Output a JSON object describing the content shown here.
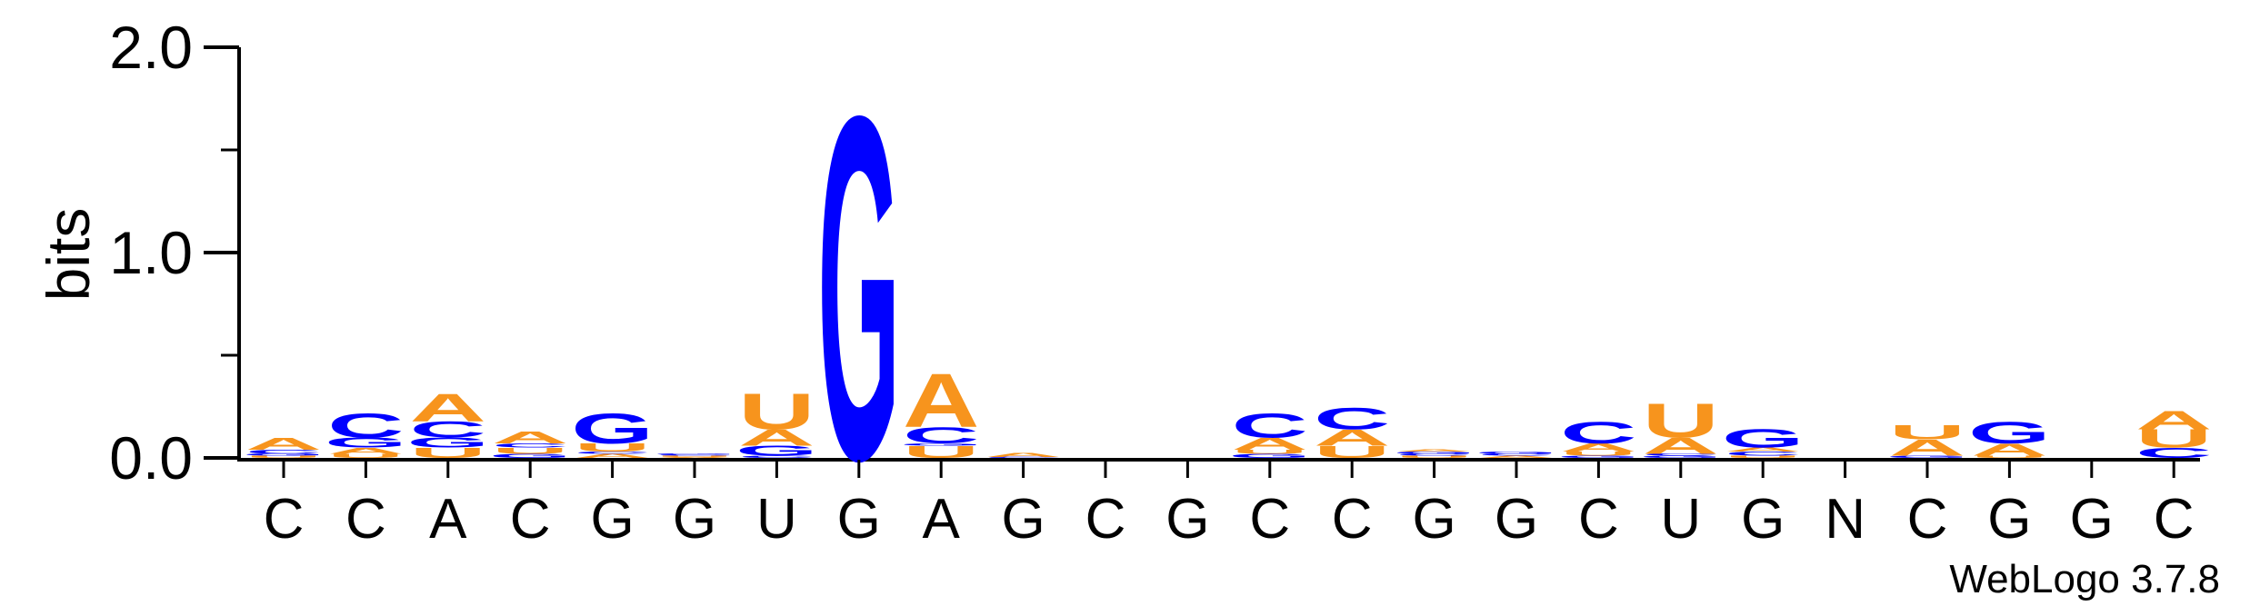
{
  "chart_data": {
    "type": "sequence-logo",
    "ylabel": "bits",
    "ylim": [
      0,
      2
    ],
    "yticks": [
      "0.0",
      "1.0",
      "2.0"
    ],
    "footer": "WebLogo 3.7.8",
    "colors": {
      "A": "#f7941d",
      "U": "#f7941d",
      "C": "#0000ff",
      "G": "#0000ff"
    },
    "positions": [
      {
        "label": "C",
        "stack": [
          [
            "U",
            0.01
          ],
          [
            "G",
            0.01
          ],
          [
            "C",
            0.02
          ],
          [
            "A",
            0.06
          ]
        ]
      },
      {
        "label": "C",
        "stack": [
          [
            "U",
            0.02
          ],
          [
            "A",
            0.03
          ],
          [
            "G",
            0.05
          ],
          [
            "C",
            0.12
          ]
        ]
      },
      {
        "label": "A",
        "stack": [
          [
            "U",
            0.05
          ],
          [
            "G",
            0.05
          ],
          [
            "C",
            0.08
          ],
          [
            "A",
            0.14
          ]
        ]
      },
      {
        "label": "C",
        "stack": [
          [
            "G",
            0.02
          ],
          [
            "U",
            0.03
          ],
          [
            "C",
            0.02
          ],
          [
            "A",
            0.06
          ]
        ]
      },
      {
        "label": "G",
        "stack": [
          [
            "A",
            0.02
          ],
          [
            "C",
            0.01
          ],
          [
            "U",
            0.04
          ],
          [
            "G",
            0.15
          ]
        ]
      },
      {
        "label": "G",
        "stack": [
          [
            "A",
            0.005
          ],
          [
            "U",
            0.005
          ],
          [
            "C",
            0.005
          ],
          [
            "G",
            0.005
          ]
        ]
      },
      {
        "label": "U",
        "stack": [
          [
            "C",
            0.01
          ],
          [
            "G",
            0.05
          ],
          [
            "A",
            0.08
          ],
          [
            "U",
            0.18
          ]
        ]
      },
      {
        "label": "G",
        "stack": [
          [
            "G",
            1.72
          ]
        ]
      },
      {
        "label": "A",
        "stack": [
          [
            "U",
            0.06
          ],
          [
            "G",
            0.01
          ],
          [
            "C",
            0.08
          ],
          [
            "A",
            0.27
          ]
        ]
      },
      {
        "label": "G",
        "stack": [
          [
            "C",
            0.005
          ],
          [
            "A",
            0.02
          ]
        ]
      },
      {
        "label": "C",
        "stack": []
      },
      {
        "label": "G",
        "stack": []
      },
      {
        "label": "C",
        "stack": [
          [
            "G",
            0.02
          ],
          [
            "U",
            0.02
          ],
          [
            "A",
            0.06
          ],
          [
            "C",
            0.12
          ]
        ]
      },
      {
        "label": "C",
        "stack": [
          [
            "U",
            0.06
          ],
          [
            "A",
            0.08
          ],
          [
            "C",
            0.11
          ]
        ]
      },
      {
        "label": "G",
        "stack": [
          [
            "U",
            0.01
          ],
          [
            "C",
            0.01
          ],
          [
            "G",
            0.01
          ],
          [
            "A",
            0.01
          ]
        ]
      },
      {
        "label": "G",
        "stack": [
          [
            "A",
            0.01
          ],
          [
            "C",
            0.01
          ],
          [
            "G",
            0.01
          ]
        ]
      },
      {
        "label": "C",
        "stack": [
          [
            "G",
            0.01
          ],
          [
            "U",
            0.02
          ],
          [
            "A",
            0.04
          ],
          [
            "C",
            0.11
          ]
        ]
      },
      {
        "label": "U",
        "stack": [
          [
            "G",
            0.01
          ],
          [
            "C",
            0.01
          ],
          [
            "A",
            0.08
          ],
          [
            "U",
            0.17
          ]
        ]
      },
      {
        "label": "G",
        "stack": [
          [
            "U",
            0.01
          ],
          [
            "C",
            0.02
          ],
          [
            "A",
            0.02
          ],
          [
            "G",
            0.09
          ]
        ]
      },
      {
        "label": "N",
        "stack": []
      },
      {
        "label": "C",
        "stack": [
          [
            "G",
            0.01
          ],
          [
            "A",
            0.08
          ],
          [
            "U",
            0.07
          ]
        ]
      },
      {
        "label": "G",
        "stack": [
          [
            "U",
            0.01
          ],
          [
            "A",
            0.06
          ],
          [
            "G",
            0.11
          ]
        ]
      },
      {
        "label": "G",
        "stack": []
      },
      {
        "label": "C",
        "stack": [
          [
            "C",
            0.05
          ],
          [
            "U",
            0.09
          ],
          [
            "A",
            0.09
          ]
        ]
      }
    ]
  }
}
